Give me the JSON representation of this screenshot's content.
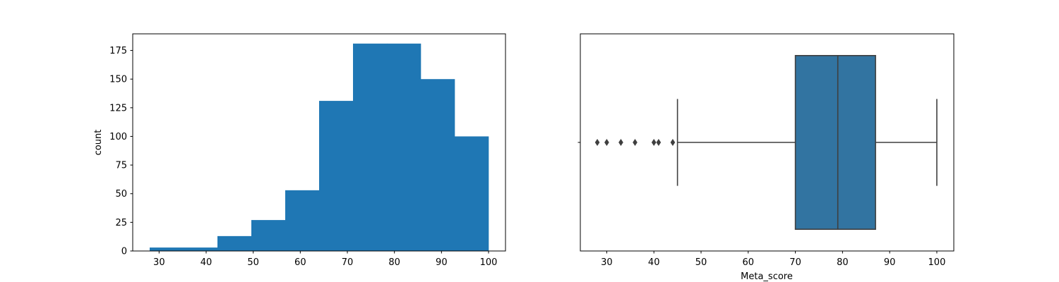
{
  "chart_data": [
    {
      "type": "bar",
      "subtype": "histogram",
      "title": "",
      "xlabel": "",
      "ylabel": "count",
      "xlim": [
        24.4,
        103.6
      ],
      "ylim": [
        0,
        189.5
      ],
      "xticks": [
        30,
        40,
        50,
        60,
        70,
        80,
        90,
        100
      ],
      "yticks": [
        0,
        25,
        50,
        75,
        100,
        125,
        150,
        175
      ],
      "color": "#1f77b4",
      "bins": [
        {
          "x0": 28.0,
          "x1": 35.2,
          "count": 3
        },
        {
          "x0": 35.2,
          "x1": 42.4,
          "count": 3
        },
        {
          "x0": 42.4,
          "x1": 49.6,
          "count": 13
        },
        {
          "x0": 49.6,
          "x1": 56.8,
          "count": 27
        },
        {
          "x0": 56.8,
          "x1": 64.0,
          "count": 53
        },
        {
          "x0": 64.0,
          "x1": 71.2,
          "count": 131
        },
        {
          "x0": 71.2,
          "x1": 78.4,
          "count": 181
        },
        {
          "x0": 78.4,
          "x1": 85.6,
          "count": 181
        },
        {
          "x0": 85.6,
          "x1": 92.8,
          "count": 150
        },
        {
          "x0": 92.8,
          "x1": 100.0,
          "count": 100
        }
      ],
      "grid": false
    },
    {
      "type": "box",
      "title": "",
      "xlabel": "Meta_score",
      "ylabel": "",
      "xlim": [
        24.4,
        103.6
      ],
      "xticks": [
        30,
        40,
        50,
        60,
        70,
        80,
        90,
        100
      ],
      "color": "#3274a1",
      "edge_color": "#3f3f3f",
      "box": {
        "whisker_low": 45,
        "q1": 70,
        "median": 79,
        "q3": 87,
        "whisker_high": 100
      },
      "outliers": [
        28,
        30,
        33,
        36,
        40,
        41,
        44
      ],
      "grid": false
    }
  ]
}
